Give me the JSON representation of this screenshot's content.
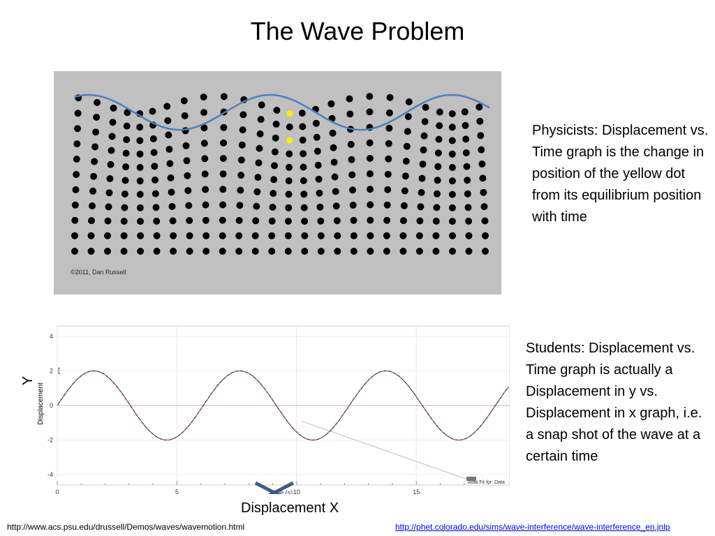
{
  "title": "The Wave Problem",
  "simulation": {
    "copyright": "©2011, Dan Russell",
    "dot_color": "#000000",
    "highlight_color": "#ffee00",
    "wave_color": "#4a7fc1"
  },
  "notes": {
    "physicists": "Physicists: Displacement vs. Time graph is the change in position of the yellow dot from its equilibrium position with time",
    "students": "Students: Displacement vs. Time graph is actually a Displacement in y vs. Displacement in x graph, i.e. a snap shot of the wave at a certain time"
  },
  "chart_data": {
    "type": "line",
    "ylabel": "Displacement",
    "xlabel": "Time (s)",
    "y_ticks": [
      "4",
      "2",
      "0",
      "-2",
      "-4"
    ],
    "x_ticks": [
      "0",
      "5",
      "10",
      "15"
    ],
    "ylim": [
      -4.6,
      4.6
    ],
    "xlim": [
      0,
      18.9
    ],
    "series": [
      {
        "amplitude": 2,
        "period": 6.1,
        "color": "#333333"
      },
      {
        "amplitude": 2,
        "period": 6.1,
        "color": "#ff6666",
        "style": "dashed"
      }
    ],
    "fit_line": {
      "x": [
        10.2,
        17.6
      ],
      "y": [
        -0.9,
        -4.5
      ],
      "color": "#bbbbbb"
    },
    "fit_label": "Auto Fit for: Data"
  },
  "labels": {
    "y": "Y",
    "x": "Displacement X"
  },
  "links": {
    "left": "http://www.acs.psu.edu/drussell/Demos/waves/wavemotion.html",
    "right": "http://phet.colorado.edu/sims/wave-interference/wave-interference_en.jnlp"
  }
}
